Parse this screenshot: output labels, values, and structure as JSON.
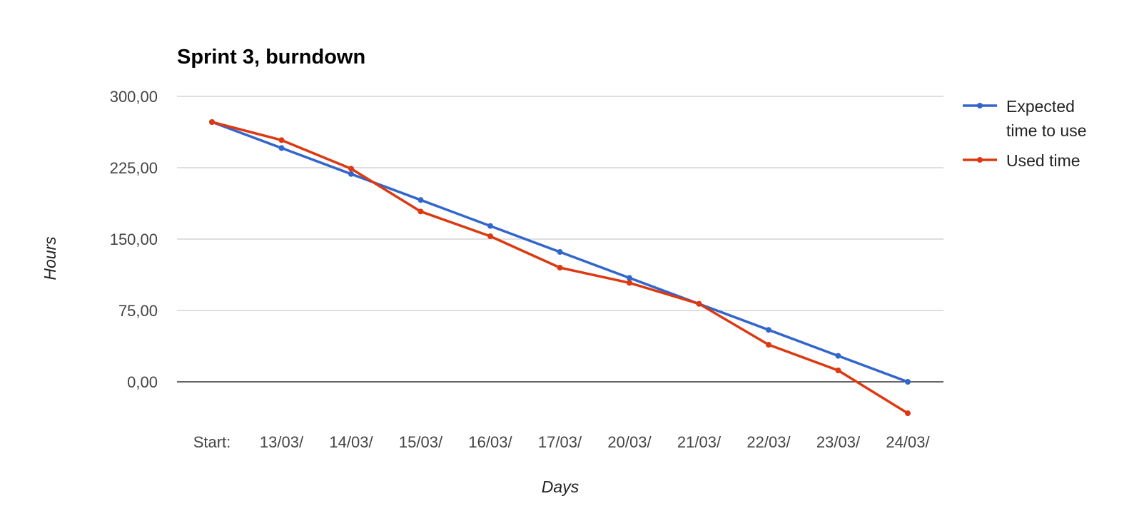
{
  "chart_data": {
    "type": "line",
    "title": "Sprint 3, burndown",
    "xlabel": "Days",
    "ylabel": "Hours",
    "ylim": [
      -35,
      300
    ],
    "y_ticks": [
      0,
      75,
      150,
      225,
      300
    ],
    "y_tick_labels": [
      "0,00",
      "75,00",
      "150,00",
      "225,00",
      "300,00"
    ],
    "categories": [
      "Start:",
      "13/03/",
      "14/03/",
      "15/03/",
      "16/03/",
      "17/03/",
      "20/03/",
      "21/03/",
      "22/03/",
      "23/03/",
      "24/03/"
    ],
    "series": [
      {
        "name": "Expected time to use",
        "legend_lines": [
          "Expected",
          "time to use"
        ],
        "color": "#3366cc",
        "values": [
          273,
          245.7,
          218.4,
          191.1,
          163.8,
          136.5,
          109.2,
          81.9,
          54.6,
          27.3,
          0
        ]
      },
      {
        "name": "Used time",
        "legend_lines": [
          "Used time"
        ],
        "color": "#dc3912",
        "values": [
          273,
          254,
          224,
          179,
          153,
          120,
          104,
          82,
          39,
          12,
          -33
        ]
      }
    ],
    "grid": true,
    "legend_position": "right",
    "colors": {
      "gridline": "#cccccc",
      "baseline": "#333333",
      "tick_text": "#444444"
    }
  }
}
